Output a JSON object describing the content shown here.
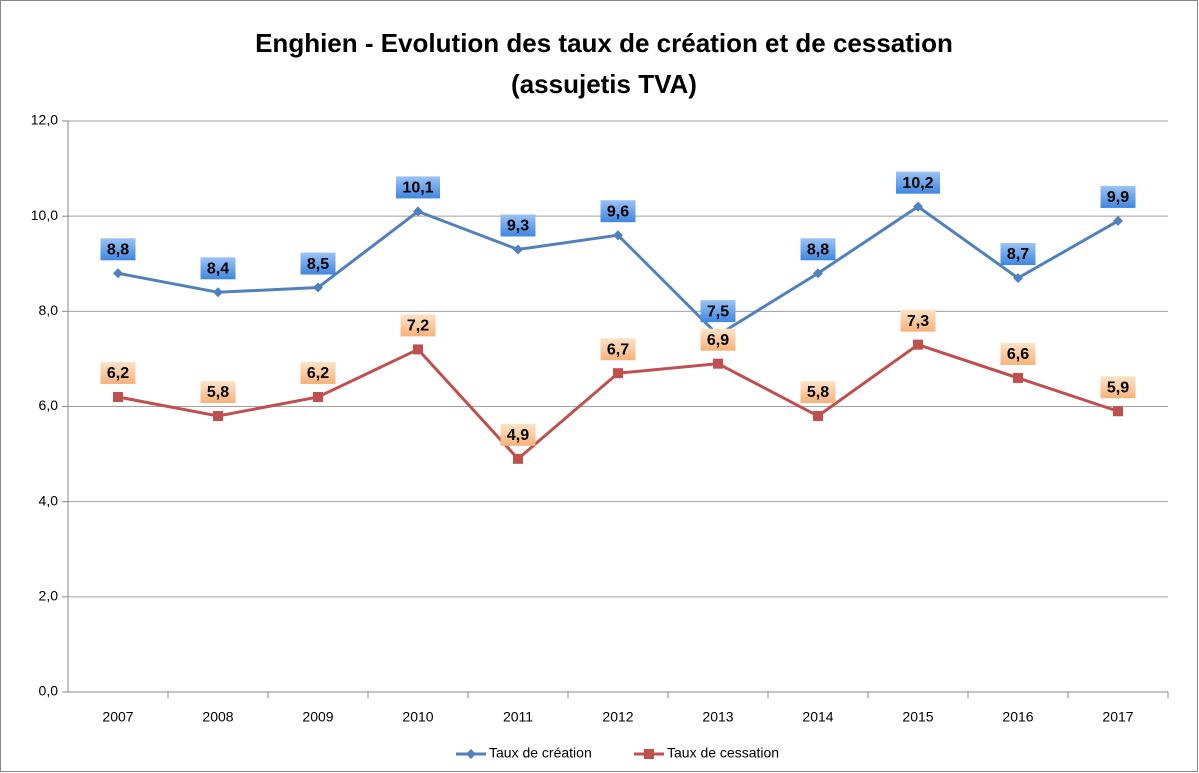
{
  "chart_data": {
    "type": "line",
    "title": "Enghien - Evolution des taux de création et de cessation",
    "subtitle": "(assujetis TVA)",
    "categories": [
      "2007",
      "2008",
      "2009",
      "2010",
      "2011",
      "2012",
      "2013",
      "2014",
      "2015",
      "2016",
      "2017"
    ],
    "series": [
      {
        "name": "Taux de création",
        "color": "#4f81bd",
        "marker": "diamond",
        "label_fill": [
          "#9cc3f5",
          "#3f86e0"
        ],
        "values": [
          8.8,
          8.4,
          8.5,
          10.1,
          9.3,
          9.6,
          7.5,
          8.8,
          10.2,
          8.7,
          9.9
        ],
        "value_labels": [
          "8,8",
          "8,4",
          "8,5",
          "10,1",
          "9,3",
          "9,6",
          "7,5",
          "8,8",
          "10,2",
          "8,7",
          "9,9"
        ]
      },
      {
        "name": "Taux de cessation",
        "color": "#c0504d",
        "marker": "square",
        "label_fill": [
          "#fde3c8",
          "#f7b27a"
        ],
        "values": [
          6.2,
          5.8,
          6.2,
          7.2,
          4.9,
          6.7,
          6.9,
          5.8,
          7.3,
          6.6,
          5.9
        ],
        "value_labels": [
          "6,2",
          "5,8",
          "6,2",
          "7,2",
          "4,9",
          "6,7",
          "6,9",
          "5,8",
          "7,3",
          "6,6",
          "5,9"
        ]
      }
    ],
    "ylim": [
      0,
      12
    ],
    "yticks": [
      {
        "value": 0,
        "label": "0,0"
      },
      {
        "value": 2,
        "label": "2,0"
      },
      {
        "value": 4,
        "label": "4,0"
      },
      {
        "value": 6,
        "label": "6,0"
      },
      {
        "value": 8,
        "label": "8,0"
      },
      {
        "value": 10,
        "label": "10,0"
      },
      {
        "value": 12,
        "label": "12,0"
      }
    ],
    "grid": true,
    "legend": "bottom"
  }
}
